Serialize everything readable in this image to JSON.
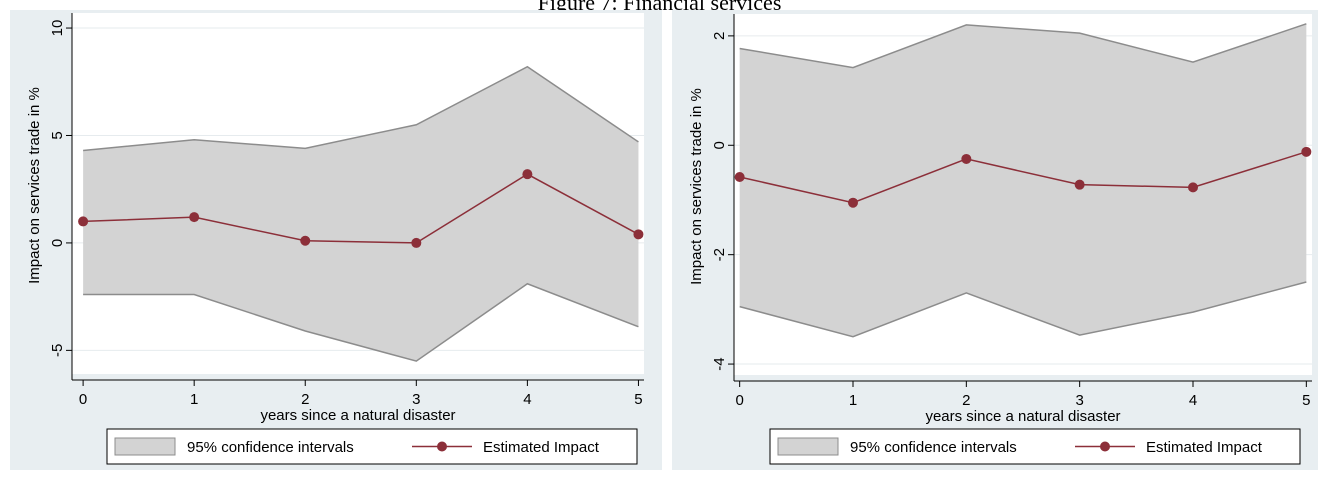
{
  "figure_title": "Figure 7: Financial services",
  "colors": {
    "band_fill": "#d3d3d3",
    "band_stroke": "#8c8c8c",
    "line": "#8c2f39",
    "panel_bg": "#e8eef1",
    "plot_bg": "#ffffff"
  },
  "chart_data": [
    {
      "type": "line",
      "title": "",
      "xlabel": "years since a natural disaster",
      "ylabel": "Impact on services trade in %",
      "x": [
        0,
        1,
        2,
        3,
        4,
        5
      ],
      "xticks": [
        0,
        1,
        2,
        3,
        4,
        5
      ],
      "yticks": [
        -5,
        0,
        5,
        10
      ],
      "ylim": [
        -6.1,
        10.7
      ],
      "xlim": [
        -0.1,
        5.05
      ],
      "grid": true,
      "legend_position": "bottom",
      "series": [
        {
          "name": "Estimated Impact",
          "values": [
            1.0,
            1.2,
            0.1,
            0.0,
            3.2,
            0.4
          ]
        }
      ],
      "band": {
        "name": "95% confidence intervals",
        "lower": [
          -2.4,
          -2.4,
          -4.1,
          -5.5,
          -1.9,
          -3.9
        ],
        "upper": [
          4.3,
          4.8,
          4.4,
          5.5,
          8.2,
          4.7
        ]
      },
      "legend": [
        "95% confidence intervals",
        "Estimated Impact"
      ]
    },
    {
      "type": "line",
      "title": "",
      "xlabel": "years since a natural disaster",
      "ylabel": "Impact on services trade in %",
      "x": [
        0,
        1,
        2,
        3,
        4,
        5
      ],
      "xticks": [
        0,
        1,
        2,
        3,
        4,
        5
      ],
      "yticks": [
        -4,
        -2,
        0,
        2
      ],
      "ylim": [
        -4.2,
        2.4
      ],
      "xlim": [
        -0.05,
        5.05
      ],
      "grid": true,
      "legend_position": "bottom",
      "series": [
        {
          "name": "Estimated Impact",
          "values": [
            -0.58,
            -1.05,
            -0.25,
            -0.72,
            -0.77,
            -0.12
          ]
        }
      ],
      "band": {
        "name": "95% confidence intervals",
        "lower": [
          -2.95,
          -3.5,
          -2.7,
          -3.47,
          -3.05,
          -2.5
        ],
        "upper": [
          1.77,
          1.42,
          2.2,
          2.05,
          1.52,
          2.22
        ]
      },
      "legend": [
        "95% confidence intervals",
        "Estimated Impact"
      ]
    }
  ]
}
